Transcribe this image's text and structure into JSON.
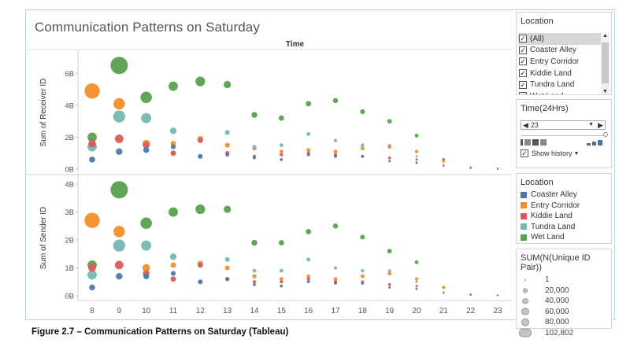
{
  "title": "Communication Patterns on Saturday",
  "caption": "Figure 2.7 – Communication Patterns on Saturday (Tableau)",
  "colors": {
    "Coaster Alley": "#4e79a7",
    "Entry Corridor": "#f28e2b",
    "Kiddie Land": "#e15759",
    "Tundra Land": "#76b7b2",
    "Wet Land": "#59a14f"
  },
  "location_filter": {
    "title": "Location",
    "items": [
      "(All)",
      "Coaster Alley",
      "Entry Corridor",
      "Kiddie Land",
      "Tundra Land",
      "Wet Land"
    ],
    "checked_mark": "✓"
  },
  "time_filter": {
    "title": "Time(24Hrs)",
    "value": "23",
    "show_history": "Show history"
  },
  "color_legend": {
    "title": "Location",
    "items": [
      "Coaster Alley",
      "Entry Corridor",
      "Kiddie Land",
      "Tundra Land",
      "Wet Land"
    ]
  },
  "size_legend": {
    "title": "SUM(N(Unique ID Pair))",
    "items": [
      "1",
      "20,000",
      "40,000",
      "60,000",
      "80,000",
      "102,802"
    ],
    "values": [
      1,
      20000,
      40000,
      60000,
      80000,
      102802
    ]
  },
  "chart_data": {
    "type": "scatter",
    "column_header": "Time",
    "x": [
      8,
      9,
      10,
      11,
      12,
      13,
      14,
      15,
      16,
      17,
      18,
      19,
      20,
      21,
      22,
      23
    ],
    "x_tick_labels": [
      "8",
      "9",
      "10",
      "11",
      "12",
      "13",
      "14",
      "15",
      "16",
      "17",
      "18",
      "19",
      "20",
      "21",
      "22",
      "23"
    ],
    "panels": [
      {
        "ylabel": "Sum of Receiver ID",
        "ylim": [
          0,
          7.2
        ],
        "y_ticks": [
          0,
          2,
          4,
          6
        ],
        "y_tick_labels": [
          "0B",
          "2B",
          "4B",
          "6B"
        ],
        "series": [
          {
            "name": "Wet Land",
            "y": [
              2.0,
              6.5,
              4.5,
              5.2,
              5.5,
              5.3,
              3.4,
              3.2,
              4.1,
              4.3,
              3.6,
              3.0,
              2.1,
              0.6,
              0.1,
              0.05
            ],
            "size": [
              30000,
              102802,
              45000,
              30000,
              32000,
              18000,
              12000,
              10000,
              10000,
              9000,
              8000,
              7000,
              5000,
              3000,
              2000,
              1000
            ]
          },
          {
            "name": "Entry Corridor",
            "y": [
              4.9,
              4.1,
              1.6,
              1.6,
              1.9,
              1.5,
              1.3,
              1.1,
              1.2,
              1.1,
              1.3,
              1.4,
              1.1,
              0.5,
              0.1,
              0.02
            ],
            "size": [
              80000,
              45000,
              20000,
              10000,
              12000,
              8000,
              6000,
              5000,
              5000,
              5000,
              5000,
              5000,
              4000,
              3000,
              1500,
              500
            ]
          },
          {
            "name": "Tundra Land",
            "y": [
              1.4,
              3.3,
              3.2,
              2.4,
              1.8,
              2.3,
              1.4,
              1.5,
              2.2,
              1.8,
              1.5,
              1.5,
              0.8,
              0.3,
              0.05,
              0.01
            ],
            "size": [
              30000,
              50000,
              35000,
              15000,
              10000,
              8000,
              5000,
              5000,
              5000,
              4000,
              4000,
              3000,
              2000,
              1000,
              500,
              200
            ]
          },
          {
            "name": "Kiddie Land",
            "y": [
              1.6,
              1.9,
              1.5,
              1.0,
              1.8,
              1.0,
              0.8,
              0.9,
              1.0,
              0.9,
              0.8,
              0.7,
              0.6,
              0.2,
              0.05,
              0.01
            ],
            "size": [
              20000,
              25000,
              15000,
              10000,
              8000,
              6000,
              4000,
              4000,
              4000,
              4000,
              3000,
              3000,
              2000,
              1000,
              500,
              200
            ]
          },
          {
            "name": "Coaster Alley",
            "y": [
              0.6,
              1.1,
              1.2,
              1.4,
              0.8,
              0.9,
              0.7,
              0.6,
              0.9,
              0.8,
              0.8,
              0.5,
              0.4,
              0.2,
              0.05,
              0.01
            ],
            "size": [
              12000,
              15000,
              12000,
              8000,
              8000,
              5000,
              3000,
              3000,
              3000,
              3000,
              3000,
              2000,
              2000,
              1000,
              500,
              200
            ]
          }
        ]
      },
      {
        "ylabel": "Sum of Sender ID",
        "ylim": [
          0,
          4.2
        ],
        "y_ticks": [
          0,
          1,
          2,
          3,
          4
        ],
        "y_tick_labels": [
          "0B",
          "1B",
          "2B",
          "3B",
          "4B"
        ],
        "series": [
          {
            "name": "Wet Land",
            "y": [
              1.1,
              3.8,
              2.6,
              3.0,
              3.1,
              3.1,
              1.9,
              1.9,
              2.3,
              2.5,
              2.1,
              1.6,
              1.2,
              0.3,
              0.05,
              0.02
            ],
            "size": [
              30000,
              102802,
              45000,
              30000,
              32000,
              18000,
              12000,
              10000,
              10000,
              9000,
              8000,
              7000,
              5000,
              3000,
              2000,
              1000
            ]
          },
          {
            "name": "Entry Corridor",
            "y": [
              2.7,
              2.3,
              1.0,
              1.1,
              1.15,
              1.0,
              0.7,
              0.6,
              0.7,
              0.6,
              0.7,
              0.8,
              0.6,
              0.3,
              0.05,
              0.01
            ],
            "size": [
              80000,
              45000,
              20000,
              10000,
              12000,
              8000,
              6000,
              5000,
              5000,
              5000,
              5000,
              5000,
              4000,
              3000,
              1500,
              500
            ]
          },
          {
            "name": "Tundra Land",
            "y": [
              0.75,
              1.8,
              1.8,
              1.4,
              1.1,
              1.3,
              0.9,
              0.9,
              1.3,
              1.0,
              0.9,
              0.9,
              0.5,
              0.15,
              0.03,
              0.01
            ],
            "size": [
              30000,
              50000,
              35000,
              15000,
              10000,
              8000,
              5000,
              5000,
              5000,
              4000,
              4000,
              3000,
              2000,
              1000,
              500,
              200
            ]
          },
          {
            "name": "Kiddie Land",
            "y": [
              1.0,
              1.1,
              0.8,
              0.6,
              1.1,
              0.6,
              0.5,
              0.5,
              0.6,
              0.5,
              0.5,
              0.4,
              0.35,
              0.1,
              0.03,
              0.01
            ],
            "size": [
              20000,
              25000,
              15000,
              10000,
              8000,
              6000,
              4000,
              4000,
              4000,
              4000,
              3000,
              3000,
              2000,
              1000,
              500,
              200
            ]
          },
          {
            "name": "Coaster Alley",
            "y": [
              0.3,
              0.7,
              0.7,
              0.8,
              0.5,
              0.6,
              0.4,
              0.35,
              0.5,
              0.45,
              0.45,
              0.3,
              0.25,
              0.1,
              0.03,
              0.01
            ],
            "size": [
              12000,
              15000,
              12000,
              8000,
              8000,
              5000,
              3000,
              3000,
              3000,
              3000,
              3000,
              2000,
              2000,
              1000,
              500,
              200
            ]
          }
        ]
      }
    ],
    "legend_placement": "right",
    "grid": false
  }
}
